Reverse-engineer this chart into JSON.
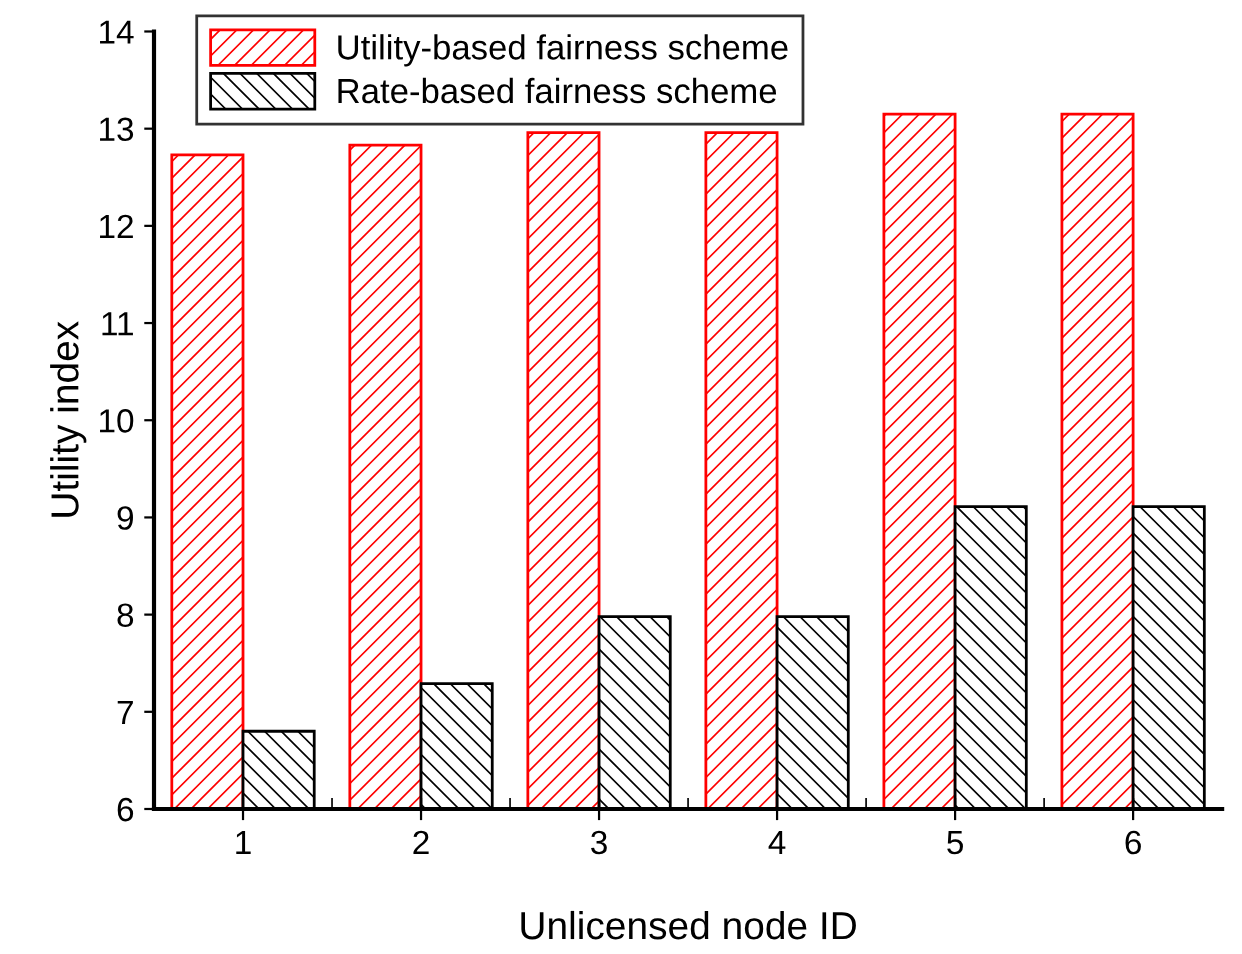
{
  "chart_data": {
    "type": "bar",
    "xlabel": "Unlicensed node ID",
    "ylabel": "Utility index",
    "categories": [
      "1",
      "2",
      "3",
      "4",
      "5",
      "6"
    ],
    "series": [
      {
        "name": "Utility-based fairness scheme",
        "color": "#ff0000",
        "values": [
          12.73,
          12.83,
          12.96,
          12.96,
          13.15,
          13.15
        ]
      },
      {
        "name": "Rate-based fairness scheme",
        "color": "#000000",
        "values": [
          6.8,
          7.29,
          7.98,
          7.98,
          9.11,
          9.11
        ]
      }
    ],
    "ylim": [
      6,
      14
    ],
    "yticks": [
      6,
      7,
      8,
      9,
      10,
      11,
      12,
      13,
      14
    ],
    "grid": false,
    "legend": "top left"
  }
}
